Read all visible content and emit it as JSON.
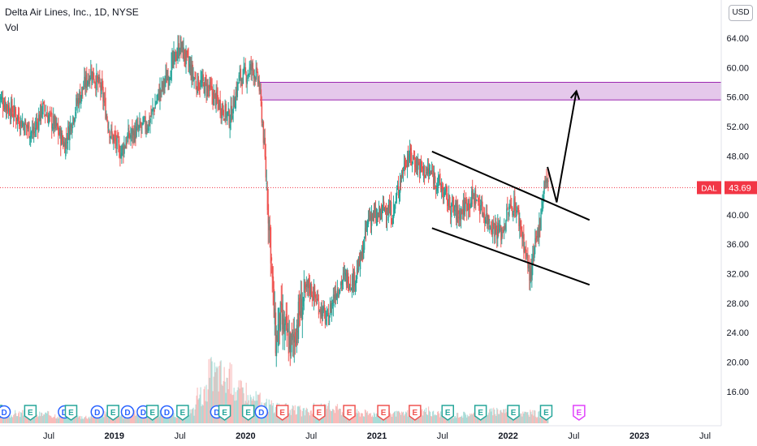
{
  "header": {
    "title": "Delta Air Lines, Inc., 1D, NYSE",
    "volume_label": "Vol"
  },
  "currency_button": "USD",
  "price_label": {
    "ticker": "DAL",
    "value": "43.69",
    "color": "#f23645"
  },
  "colors": {
    "up": "#26a69a",
    "down": "#ef5350",
    "zone_fill": "#e1bee7",
    "zone_stroke": "#9c27b0",
    "earnings_up": "#26a69a",
    "earnings_down": "#ef5350",
    "earnings_future": "#e040fb"
  },
  "chart_data": {
    "type": "candlestick",
    "title": "Delta Air Lines, Inc., 1D, NYSE",
    "y_ticks": [
      "64.00",
      "60.00",
      "56.00",
      "52.00",
      "48.00",
      "44.00",
      "40.00",
      "36.00",
      "32.00",
      "28.00",
      "24.00",
      "20.00",
      "16.00"
    ],
    "ylim": [
      12.5,
      67.5
    ],
    "x_ticks": [
      {
        "label": "Jul",
        "date": 2018.5,
        "bold": false
      },
      {
        "label": "2019",
        "date": 2019.0,
        "bold": true
      },
      {
        "label": "Jul",
        "date": 2019.5,
        "bold": false
      },
      {
        "label": "2020",
        "date": 2020.0,
        "bold": true
      },
      {
        "label": "Jul",
        "date": 2020.5,
        "bold": false
      },
      {
        "label": "2021",
        "date": 2021.0,
        "bold": true
      },
      {
        "label": "Jul",
        "date": 2021.5,
        "bold": false
      },
      {
        "label": "2022",
        "date": 2022.0,
        "bold": true
      },
      {
        "label": "Jul",
        "date": 2022.5,
        "bold": false
      },
      {
        "label": "2023",
        "date": 2023.0,
        "bold": true
      },
      {
        "label": "Jul",
        "date": 2023.5,
        "bold": false
      }
    ],
    "price_path": [
      [
        2018.12,
        56.0
      ],
      [
        2018.2,
        54.5
      ],
      [
        2018.3,
        52.5
      ],
      [
        2018.38,
        51.0
      ],
      [
        2018.45,
        54.5
      ],
      [
        2018.55,
        52.0
      ],
      [
        2018.62,
        49.5
      ],
      [
        2018.72,
        55.5
      ],
      [
        2018.82,
        59.5
      ],
      [
        2018.9,
        57.0
      ],
      [
        2018.97,
        51.0
      ],
      [
        2019.05,
        48.5
      ],
      [
        2019.1,
        50.5
      ],
      [
        2019.18,
        51.5
      ],
      [
        2019.26,
        52.5
      ],
      [
        2019.33,
        56.0
      ],
      [
        2019.42,
        59.5
      ],
      [
        2019.5,
        63.0
      ],
      [
        2019.55,
        61.0
      ],
      [
        2019.62,
        58.0
      ],
      [
        2019.7,
        57.5
      ],
      [
        2019.8,
        55.0
      ],
      [
        2019.88,
        53.0
      ],
      [
        2019.95,
        58.5
      ],
      [
        2020.0,
        59.0
      ],
      [
        2020.05,
        60.0
      ],
      [
        2020.1,
        58.0
      ],
      [
        2020.13,
        52.0
      ],
      [
        2020.16,
        44.0
      ],
      [
        2020.19,
        36.0
      ],
      [
        2020.21,
        28.0
      ],
      [
        2020.23,
        22.5
      ],
      [
        2020.26,
        26.0
      ],
      [
        2020.3,
        24.0
      ],
      [
        2020.35,
        22.0
      ],
      [
        2020.42,
        27.5
      ],
      [
        2020.48,
        30.5
      ],
      [
        2020.55,
        28.0
      ],
      [
        2020.62,
        25.5
      ],
      [
        2020.68,
        29.5
      ],
      [
        2020.75,
        31.5
      ],
      [
        2020.82,
        31.0
      ],
      [
        2020.88,
        34.0
      ],
      [
        2020.94,
        40.0
      ],
      [
        2021.0,
        39.5
      ],
      [
        2021.06,
        41.0
      ],
      [
        2021.12,
        40.0
      ],
      [
        2021.18,
        45.0
      ],
      [
        2021.23,
        48.0
      ],
      [
        2021.28,
        47.5
      ],
      [
        2021.35,
        46.0
      ],
      [
        2021.42,
        45.5
      ],
      [
        2021.48,
        44.0
      ],
      [
        2021.55,
        41.5
      ],
      [
        2021.62,
        40.0
      ],
      [
        2021.68,
        41.5
      ],
      [
        2021.75,
        42.5
      ],
      [
        2021.82,
        40.0
      ],
      [
        2021.88,
        38.5
      ],
      [
        2021.95,
        37.5
      ],
      [
        2022.0,
        40.5
      ],
      [
        2022.05,
        41.5
      ],
      [
        2022.1,
        38.0
      ],
      [
        2022.14,
        34.0
      ],
      [
        2022.17,
        31.5
      ],
      [
        2022.2,
        35.0
      ],
      [
        2022.24,
        39.0
      ],
      [
        2022.28,
        45.0
      ],
      [
        2022.31,
        43.69
      ]
    ],
    "volume_levels": [
      1.0,
      1.2,
      0.9,
      1.1,
      1.0,
      1.3,
      0.8,
      1.0,
      1.1,
      0.9,
      1.2,
      1.0,
      1.3,
      1.1,
      1.5,
      3.5,
      6.0,
      5.5,
      4.0,
      3.0,
      2.2,
      1.8,
      1.6,
      1.4,
      1.8,
      2.0,
      1.5,
      1.3,
      1.2,
      1.4,
      1.1,
      1.3,
      1.5,
      1.2,
      1.0,
      1.1,
      1.0,
      1.4,
      1.6,
      1.3,
      1.2,
      1.1
    ],
    "resistance_zone": {
      "top": 58.0,
      "bottom": 55.6
    },
    "channel_upper": {
      "x1": 2021.42,
      "y1": 48.6,
      "x2": 2022.62,
      "y2": 39.3
    },
    "channel_lower": {
      "x1": 2021.42,
      "y1": 38.2,
      "x2": 2022.62,
      "y2": 30.5
    },
    "projection": [
      {
        "x": 2022.3,
        "y": 46.5
      },
      {
        "x": 2022.37,
        "y": 41.7
      },
      {
        "x": 2022.52,
        "y": 56.8
      }
    ],
    "current_price": 43.69,
    "earnings_markers": [
      {
        "date": 2018.06,
        "label": "D",
        "kind": "dividend"
      },
      {
        "date": 2018.1,
        "label": "E",
        "kind": "earnings-up"
      },
      {
        "date": 2018.16,
        "label": "D",
        "kind": "dividend"
      },
      {
        "date": 2018.36,
        "label": "E",
        "kind": "earnings-up"
      },
      {
        "date": 2018.62,
        "label": "D",
        "kind": "dividend"
      },
      {
        "date": 2018.67,
        "label": "E",
        "kind": "earnings-up"
      },
      {
        "date": 2018.87,
        "label": "D",
        "kind": "dividend"
      },
      {
        "date": 2018.99,
        "label": "E",
        "kind": "earnings-up"
      },
      {
        "date": 2019.1,
        "label": "D",
        "kind": "dividend"
      },
      {
        "date": 2019.22,
        "label": "D",
        "kind": "dividend"
      },
      {
        "date": 2019.29,
        "label": "E",
        "kind": "earnings-up"
      },
      {
        "date": 2019.4,
        "label": "D",
        "kind": "dividend"
      },
      {
        "date": 2019.52,
        "label": "E",
        "kind": "earnings-up"
      },
      {
        "date": 2019.78,
        "label": "D",
        "kind": "dividend"
      },
      {
        "date": 2019.84,
        "label": "E",
        "kind": "earnings-up"
      },
      {
        "date": 2020.02,
        "label": "E",
        "kind": "earnings-up"
      },
      {
        "date": 2020.12,
        "label": "D",
        "kind": "dividend"
      },
      {
        "date": 2020.28,
        "label": "E",
        "kind": "earnings-down"
      },
      {
        "date": 2020.56,
        "label": "E",
        "kind": "earnings-down"
      },
      {
        "date": 2020.79,
        "label": "E",
        "kind": "earnings-down"
      },
      {
        "date": 2021.05,
        "label": "E",
        "kind": "earnings-down"
      },
      {
        "date": 2021.29,
        "label": "E",
        "kind": "earnings-down"
      },
      {
        "date": 2021.54,
        "label": "E",
        "kind": "earnings-up"
      },
      {
        "date": 2021.79,
        "label": "E",
        "kind": "earnings-up"
      },
      {
        "date": 2022.04,
        "label": "E",
        "kind": "earnings-up"
      },
      {
        "date": 2022.29,
        "label": "E",
        "kind": "earnings-up"
      },
      {
        "date": 2022.54,
        "label": "E",
        "kind": "earnings-future"
      }
    ]
  }
}
